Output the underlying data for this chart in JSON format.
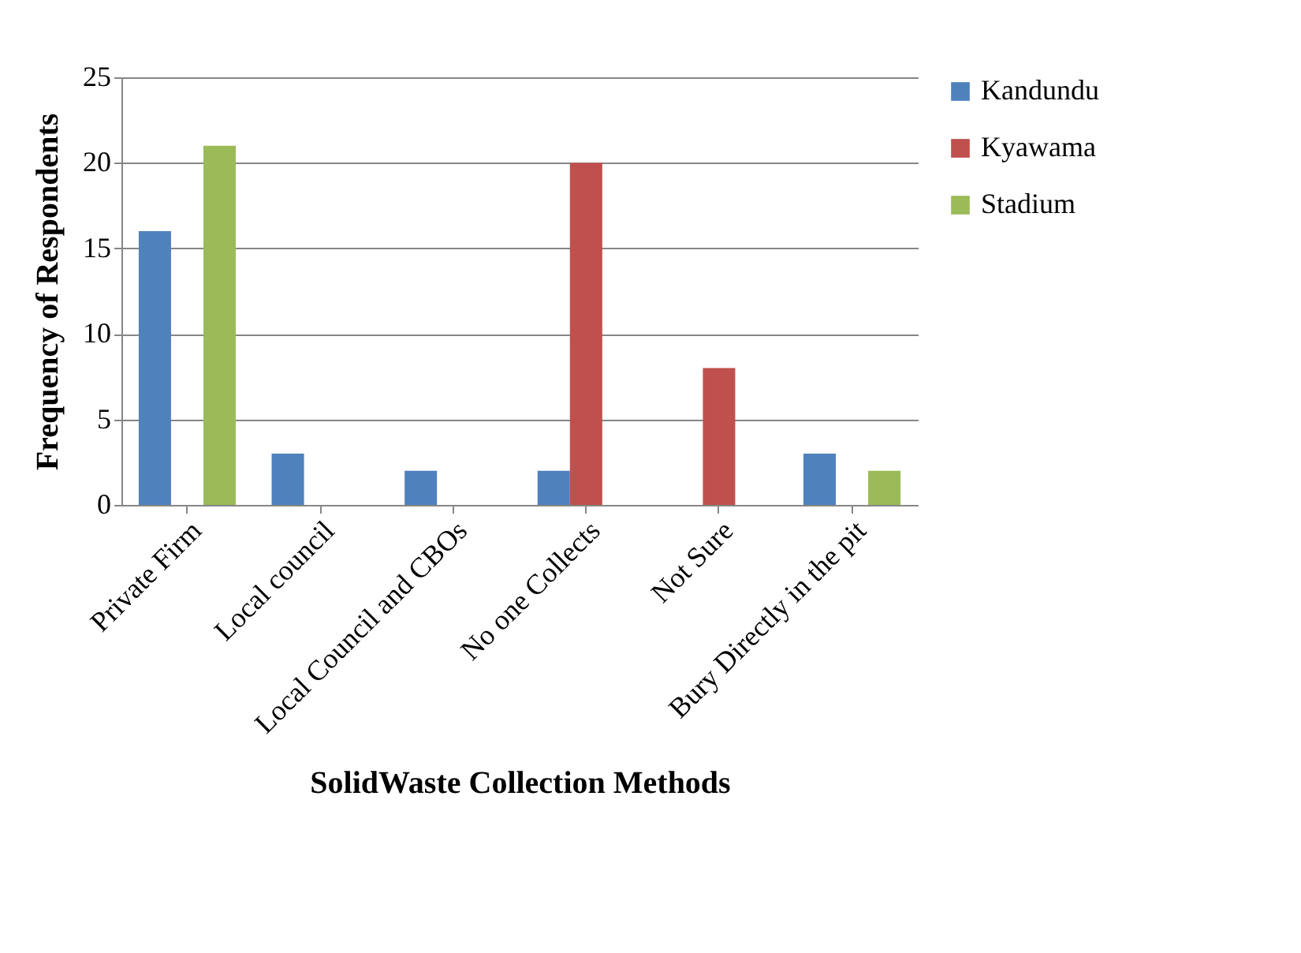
{
  "chart_data": {
    "type": "bar",
    "xlabel": "SolidWaste Collection Methods",
    "ylabel": "Frequency of Respondents",
    "categories": [
      "Private Firm",
      "Local council",
      "Local Council and CBOs",
      "No one Collects",
      "Not Sure",
      "Bury Directly in the pit"
    ],
    "series": [
      {
        "name": "Kandundu",
        "color": "#4f81bd",
        "values": [
          16,
          3,
          2,
          2,
          0,
          3
        ]
      },
      {
        "name": "Kyawama",
        "color": "#c0504d",
        "values": [
          0,
          0,
          0,
          20,
          8,
          0
        ]
      },
      {
        "name": "Stadium",
        "color": "#9bbb59",
        "values": [
          21,
          0,
          0,
          0,
          0,
          2
        ]
      }
    ],
    "ylim": [
      0,
      25
    ],
    "yticks": [
      0,
      5,
      10,
      15,
      20,
      25
    ],
    "grid": "y",
    "legend": "right"
  }
}
